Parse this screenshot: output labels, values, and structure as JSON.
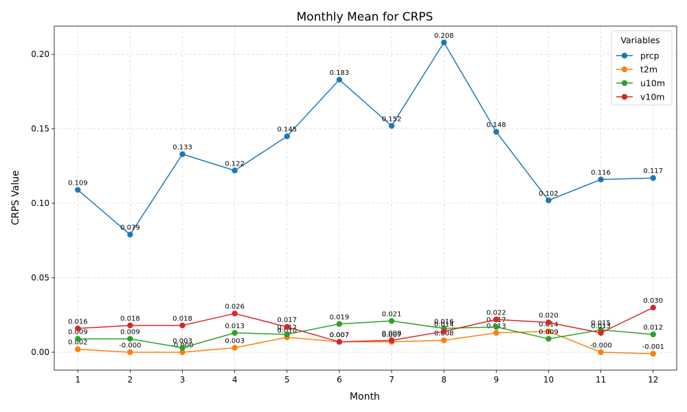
{
  "chart_data": {
    "type": "line",
    "title": "Monthly Mean for CRPS",
    "xlabel": "Month",
    "ylabel": "CRPS Value",
    "x": [
      1,
      2,
      3,
      4,
      5,
      6,
      7,
      8,
      9,
      10,
      11,
      12
    ],
    "ylim": [
      -0.012,
      0.219
    ],
    "yticks": [
      0.0,
      0.05,
      0.1,
      0.15,
      0.2
    ],
    "ytick_labels": [
      "0.00",
      "0.05",
      "0.10",
      "0.15",
      "0.20"
    ],
    "xticks": [
      1,
      2,
      3,
      4,
      5,
      6,
      7,
      8,
      9,
      10,
      11,
      12
    ],
    "xtick_labels": [
      "1",
      "2",
      "3",
      "4",
      "5",
      "6",
      "7",
      "8",
      "9",
      "10",
      "11",
      "12"
    ],
    "grid": true,
    "legend": {
      "title": "Variables",
      "placement": "top-right"
    },
    "series": [
      {
        "name": "prcp",
        "color": "#1f77b4",
        "values": [
          0.109,
          0.079,
          0.133,
          0.122,
          0.145,
          0.183,
          0.152,
          0.208,
          0.148,
          0.102,
          0.116,
          0.117
        ],
        "labels": [
          "0.109",
          "0.079",
          "0.133",
          "0.122",
          "0.145",
          "0.183",
          "0.152",
          "0.208",
          "0.148",
          "0.102",
          "0.116",
          "0.117"
        ]
      },
      {
        "name": "t2m",
        "color": "#ff7f0e",
        "values": [
          0.002,
          0.0,
          -0.0,
          0.003,
          0.01,
          0.007,
          0.007,
          0.008,
          0.013,
          0.014,
          -0.0,
          -0.001
        ],
        "labels": [
          "0.002",
          "-0.000",
          "-0.000",
          "0.003",
          "0.010",
          "0.007",
          "0.007",
          "0.008",
          "0.013",
          "0.014",
          "-0.000",
          "-0.001"
        ]
      },
      {
        "name": "u10m",
        "color": "#2ca02c",
        "values": [
          0.009,
          0.009,
          0.003,
          0.013,
          0.012,
          0.019,
          0.021,
          0.016,
          0.017,
          0.009,
          0.015,
          0.012
        ],
        "labels": [
          "0.009",
          "0.009",
          "0.003",
          "0.013",
          "0.012",
          "0.019",
          "0.021",
          "0.016",
          "0.017",
          "0.009",
          "0.015",
          "0.012"
        ]
      },
      {
        "name": "v10m",
        "color": "#d62728",
        "values": [
          0.016,
          0.018,
          0.018,
          0.026,
          0.017,
          0.007,
          0.008,
          0.014,
          0.022,
          0.02,
          0.013,
          0.03
        ],
        "labels": [
          "0.016",
          "0.018",
          "0.018",
          "0.026",
          "0.017",
          "0.007",
          "0.008",
          "0.014",
          "0.022",
          "0.020",
          "0.013",
          "0.030"
        ]
      }
    ]
  }
}
